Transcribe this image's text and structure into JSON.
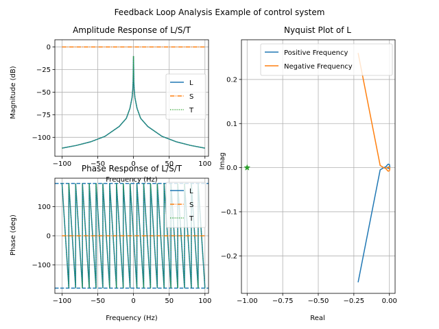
{
  "figure": {
    "suptitle": "Feedback Loop Analysis Example of control system"
  },
  "colors": {
    "L": "#1f77b4",
    "S": "#ff7f0e",
    "T": "#2ca02c",
    "positive": "#1f77b4",
    "negative": "#ff7f0e",
    "grid": "#b0b0b0",
    "marker": "#2ca02c"
  },
  "chart_data": [
    {
      "id": "amplitude",
      "type": "line",
      "title": "Amplitude Response of L/S/T",
      "xlabel": "Frequency (Hz)",
      "ylabel": "Magnitude (dB)",
      "xlim": [
        -110,
        105
      ],
      "ylim": [
        -121,
        8
      ],
      "xticks": [
        -100,
        -50,
        0,
        50,
        100
      ],
      "yticks": [
        -100,
        -75,
        -50,
        -25,
        0
      ],
      "grid": true,
      "legend": {
        "placement": "right",
        "entries": [
          "L",
          "S",
          "T"
        ]
      },
      "series": [
        {
          "name": "L",
          "style": "solid",
          "x": [
            -100,
            -80,
            -60,
            -40,
            -20,
            -10,
            -5,
            -2,
            -1,
            -0.5,
            0,
            0.5,
            1,
            2,
            5,
            10,
            20,
            40,
            60,
            80,
            100
          ],
          "y": [
            -112,
            -109,
            -105,
            -99,
            -88,
            -79,
            -68,
            -56,
            -47,
            -38,
            -10,
            -38,
            -47,
            -56,
            -68,
            -79,
            -88,
            -99,
            -105,
            -109,
            -112
          ]
        },
        {
          "name": "S",
          "style": "dashdot",
          "x": [
            -100,
            100
          ],
          "y": [
            0,
            0
          ]
        },
        {
          "name": "T",
          "style": "dotted",
          "x": [
            -100,
            -80,
            -60,
            -40,
            -20,
            -10,
            -5,
            -2,
            -1,
            -0.5,
            0,
            0.5,
            1,
            2,
            5,
            10,
            20,
            40,
            60,
            80,
            100
          ],
          "y": [
            -112,
            -109,
            -105,
            -99,
            -88,
            -79,
            -68,
            -56,
            -47,
            -38,
            -10,
            -38,
            -47,
            -56,
            -68,
            -79,
            -88,
            -99,
            -105,
            -109,
            -112
          ]
        }
      ]
    },
    {
      "id": "phase",
      "type": "line",
      "title": "Phase Response of L/S/T",
      "xlabel": "Frequency (Hz)",
      "ylabel": "Phase (deg)",
      "xlim": [
        -110,
        105
      ],
      "ylim": [
        -198,
        198
      ],
      "xticks": [
        -100,
        -50,
        0,
        50,
        100
      ],
      "yticks": [
        -100,
        0,
        100
      ],
      "grid": true,
      "hlines": [
        180,
        -180
      ],
      "legend": {
        "placement": "top-right",
        "entries": [
          "L",
          "S",
          "T"
        ]
      },
      "phase_wrap": {
        "x_start": -100,
        "x_end": 100,
        "cycles": 21,
        "low": -180,
        "high": 180
      },
      "series": [
        {
          "name": "L",
          "style": "solid",
          "x": [
            -100,
            100
          ],
          "y": [
            180,
            -180
          ]
        },
        {
          "name": "S",
          "style": "dashdot",
          "x": [
            -100,
            100
          ],
          "y": [
            0,
            0
          ]
        },
        {
          "name": "T",
          "style": "dotted",
          "x": [
            -100,
            100
          ],
          "y": [
            180,
            -180
          ]
        }
      ]
    },
    {
      "id": "nyquist",
      "type": "line",
      "title": "Nyquist Plot of L",
      "xlabel": "Real",
      "ylabel": "Imag",
      "xlim": [
        -1.04,
        0.04
      ],
      "ylim": [
        -0.285,
        0.29
      ],
      "xticks": [
        -1.0,
        -0.75,
        -0.5,
        -0.25,
        0.0
      ],
      "yticks": [
        -0.2,
        -0.1,
        0.0,
        0.1,
        0.2
      ],
      "grid": true,
      "legend": {
        "placement": "top-right",
        "entries": [
          "Positive Frequency",
          "Negative Frequency"
        ]
      },
      "critical_point": {
        "x": -1.0,
        "y": 0.0
      },
      "series": [
        {
          "name": "Positive Frequency",
          "x": [
            -0.22,
            -0.065,
            -0.04,
            -0.025,
            -0.015,
            -0.008,
            0.0,
            0.003,
            -0.002,
            -0.01,
            -0.02
          ],
          "y": [
            -0.26,
            -0.005,
            0.0,
            0.002,
            0.006,
            0.008,
            0.007,
            0.002,
            -0.002,
            -0.001,
            0.0
          ]
        },
        {
          "name": "Negative Frequency",
          "x": [
            -0.22,
            -0.065,
            -0.04,
            -0.025,
            -0.015,
            -0.008,
            0.0,
            0.003,
            -0.002,
            -0.01,
            -0.02
          ],
          "y": [
            0.26,
            0.005,
            0.0,
            -0.002,
            -0.006,
            -0.008,
            -0.007,
            -0.002,
            0.002,
            0.001,
            0.0
          ]
        }
      ]
    }
  ]
}
